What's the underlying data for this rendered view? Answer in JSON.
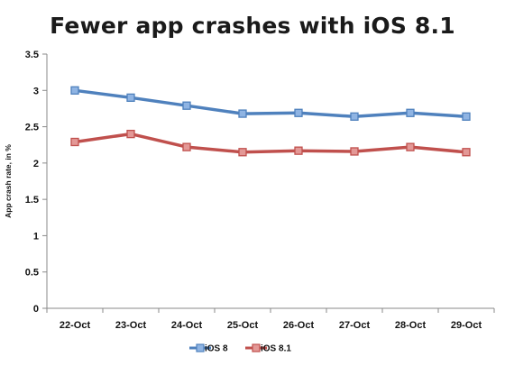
{
  "chart_data": {
    "type": "line",
    "title": "Fewer app crashes with iOS 8.1",
    "xlabel": "",
    "ylabel": "App crash rate, in %",
    "categories": [
      "22-Oct",
      "23-Oct",
      "24-Oct",
      "25-Oct",
      "26-Oct",
      "27-Oct",
      "28-Oct",
      "29-Oct"
    ],
    "series": [
      {
        "name": "iOS 8",
        "color": "#4f81bd",
        "marker_color": "#8fb4e3",
        "values": [
          3.0,
          2.9,
          2.79,
          2.68,
          2.69,
          2.64,
          2.69,
          2.64
        ]
      },
      {
        "name": "iOS 8.1",
        "color": "#c0504d",
        "marker_color": "#e39896",
        "values": [
          2.29,
          2.4,
          2.22,
          2.15,
          2.17,
          2.16,
          2.22,
          2.15
        ]
      }
    ],
    "ylim": [
      0,
      3.5
    ],
    "yticks": [
      "0",
      "0.5",
      "1",
      "1.5",
      "2",
      "2.5",
      "3",
      "3.5"
    ],
    "grid": false,
    "legend": "bottom"
  }
}
